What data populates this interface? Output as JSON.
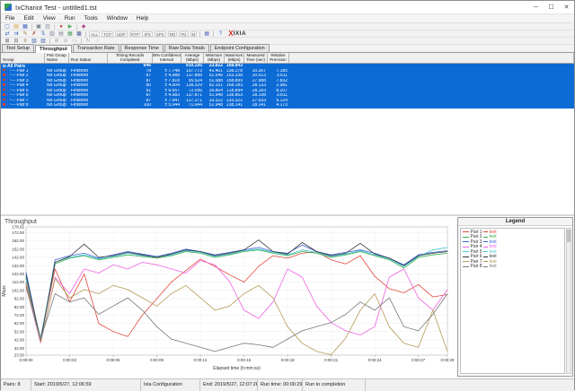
{
  "window": {
    "title": "IxChariot Test - untitled1.tst"
  },
  "titlebar_controls": {
    "minimize": "─",
    "maximize": "☐",
    "close": "✕"
  },
  "menu": {
    "items": [
      "File",
      "Edit",
      "View",
      "Run",
      "Tools",
      "Window",
      "Help"
    ]
  },
  "toolbar1": {
    "icons": [
      {
        "n": "new-test-icon",
        "g": "▢",
        "c": "#4f6fc8"
      },
      {
        "n": "open-test-icon",
        "g": "▤",
        "c": "#d9a23c"
      },
      {
        "n": "save-test-icon",
        "g": "▦",
        "c": "#3d5fc0"
      },
      {
        "sep": true
      },
      {
        "n": "print-icon",
        "g": "▣",
        "c": "#707880"
      },
      {
        "n": "copy-icon",
        "g": "▥",
        "c": "#8a94a0"
      },
      {
        "sep": true
      },
      {
        "n": "stop-test-icon",
        "g": "●",
        "c": "#cc3a30"
      },
      {
        "n": "run-test-icon",
        "g": "▶",
        "c": "#58a858"
      },
      {
        "sep": true
      },
      {
        "n": "properties-icon",
        "g": "◆",
        "c": "#b05090"
      }
    ]
  },
  "toolbar2": {
    "icons": [
      {
        "n": "add-pair-icon",
        "g": "⇄",
        "c": "#3f63c2"
      },
      {
        "n": "add-multicast-group-icon",
        "g": "⇉",
        "c": "#3f63c2"
      },
      {
        "n": "edit-pair-icon",
        "g": "✎",
        "c": "#9a7430"
      },
      {
        "n": "delete-pair-icon",
        "g": "✗",
        "c": "#c04038"
      },
      {
        "n": "swap-endpoints-icon",
        "g": "⇅",
        "c": "#4a7ac0"
      },
      {
        "n": "replicate-pair-icon",
        "g": "▥",
        "c": "#7a8494"
      },
      {
        "n": "pair-console-icon",
        "g": "▤",
        "c": "#7a8494"
      },
      {
        "n": "chart-view-icon",
        "g": "▦",
        "c": "#50a060"
      },
      {
        "n": "grid-view-icon",
        "g": "▩",
        "c": "#5060a0"
      },
      {
        "sep": true
      }
    ],
    "filters": [
      "ALL",
      "TCP",
      "UDP",
      "RTP",
      "IPX",
      "SPX",
      "RD",
      "PD",
      "M"
    ],
    "tail_icons": [
      {
        "sep": true
      },
      {
        "n": "table-icon",
        "g": "▦",
        "c": "#6a74c0"
      },
      {
        "sep": true
      },
      {
        "n": "help-icon",
        "g": "?",
        "c": "#2a6ac8"
      }
    ],
    "logo": {
      "x": "X",
      "text": "IXIA"
    }
  },
  "toolbar3": {
    "icons": [
      {
        "n": "expand-all-icon",
        "g": "⊞",
        "c": "#606878"
      },
      {
        "n": "collapse-all-icon",
        "g": "⊟",
        "c": "#606878"
      },
      {
        "n": "sort-icon",
        "g": "≡",
        "c": "#8a6a30"
      },
      {
        "n": "group-pairs-icon",
        "g": "▧",
        "c": "#4a6ab0"
      },
      {
        "n": "ungroup-pairs-icon",
        "g": "▨",
        "c": "#4a6ab0"
      },
      {
        "sep": true
      },
      {
        "n": "zoom-in-icon",
        "g": "⊕",
        "c": "#a8aeb8"
      },
      {
        "n": "zoom-out-icon",
        "g": "⊖",
        "c": "#a8aeb8"
      },
      {
        "n": "fit-view-icon",
        "g": "▭",
        "c": "#a8aeb8"
      },
      {
        "sep": true
      },
      {
        "n": "refresh-chart-icon",
        "g": "↻",
        "c": "#a8aeb8"
      },
      {
        "n": "chart-options-icon",
        "g": "○",
        "c": "#a8aeb8"
      }
    ]
  },
  "tabs": {
    "items": [
      "Test Setup",
      "Throughput",
      "Transaction Rate",
      "Response Time",
      "Raw Data Totals",
      "Endpoint Configuration"
    ],
    "active_index": 1
  },
  "table": {
    "columns": [
      {
        "l1": "Group",
        "l2": ""
      },
      {
        "l1": "Pair Group",
        "l2": "Name"
      },
      {
        "l1": "Run Status",
        "l2": ""
      },
      {
        "l1": "Timing Records",
        "l2": "Completed"
      },
      {
        "l1": "95% Confidence",
        "l2": "Interval"
      },
      {
        "l1": "Average",
        "l2": "(Mbps)"
      },
      {
        "l1": "Minimum",
        "l2": "(Mbps)"
      },
      {
        "l1": "Maximum",
        "l2": "(Mbps)"
      },
      {
        "l1": "Measured",
        "l2": "Time (sec)"
      },
      {
        "l1": "Relative",
        "l2": "Precision"
      }
    ],
    "summary_row": {
      "group": "All Pairs",
      "timing": "646",
      "avg": "910.195",
      "min": "23.822",
      "max": "168.843"
    },
    "rows": [
      {
        "group": "Pair 1",
        "name": "No Group",
        "status": "Finished",
        "timing": "78",
        "ci": "± 7.748",
        "avg": "107.773",
        "min": "41.401",
        "max": "138.278",
        "time": "20.307",
        "prec": "7.185"
      },
      {
        "group": "Pair 2",
        "name": "No Group",
        "status": "Finished",
        "timing": "87",
        "ci": "± 4.988",
        "avg": "137.888",
        "min": "51.546",
        "max": "153.338",
        "time": "20.013",
        "prec": "3.611"
      },
      {
        "group": "Pair 3",
        "name": "No Group",
        "status": "Finished",
        "timing": "87",
        "ci": "± 7.818",
        "avg": "95.524",
        "min": "51.588",
        "max": "158.899",
        "time": "27.988",
        "prec": "7.832"
      },
      {
        "group": "Pair 4",
        "name": "No Group",
        "status": "Finished",
        "timing": "80",
        "ci": "± 4.004",
        "avg": "138.329",
        "min": "82.151",
        "max": "168.183",
        "time": "28.133",
        "prec": "2.981"
      },
      {
        "group": "Pair 5",
        "name": "No Group",
        "status": "Finished",
        "timing": "91",
        "ci": "± 6.657",
        "avg": "72.096",
        "min": "39.804",
        "max": "118.894",
        "time": "28.183",
        "prec": "8.207"
      },
      {
        "group": "Pair 6",
        "name": "No Group",
        "status": "Finished",
        "timing": "87",
        "ci": "± 4.983",
        "avg": "137.871",
        "min": "51.948",
        "max": "138.863",
        "time": "28.198",
        "prec": "3.811"
      },
      {
        "group": "Pair 7",
        "name": "No Group",
        "status": "Finished",
        "timing": "87",
        "ci": "± 7.947",
        "avg": "127.271",
        "min": "33.322",
        "max": "133.322",
        "time": "27.933",
        "prec": "9.129"
      },
      {
        "group": "Pair 8",
        "name": "No Group",
        "status": "Finished",
        "timing": "100",
        "ci": "± 5.044",
        "avg": "71.044",
        "min": "51.948",
        "max": "138.141",
        "time": "28.141",
        "prec": "4.173"
      }
    ]
  },
  "chart_data": {
    "type": "line",
    "title": "Throughput",
    "xlabel": "Elapsed time (h:mm:ss)",
    "ylabel": "Mbps",
    "xlim": [
      0,
      29
    ],
    "ylim": [
      23.5,
      178.92
    ],
    "grid": true,
    "legend_position": "right-panel",
    "x": [
      0,
      1,
      2,
      3,
      4,
      5,
      6,
      7,
      8,
      9,
      10,
      11,
      12,
      13,
      14,
      15,
      16,
      17,
      18,
      19,
      20,
      21,
      22,
      23,
      24,
      25,
      26,
      27,
      28,
      29
    ],
    "xticks": [
      {
        "t": 0,
        "l": "0:00:00"
      },
      {
        "t": 3,
        "l": "0:00:03"
      },
      {
        "t": 6,
        "l": "0:00:06"
      },
      {
        "t": 9,
        "l": "0:00:09"
      },
      {
        "t": 12,
        "l": "0:00:12"
      },
      {
        "t": 15,
        "l": "0:00:15"
      },
      {
        "t": 18,
        "l": "0:00:18"
      },
      {
        "t": 21,
        "l": "0:00:21"
      },
      {
        "t": 24,
        "l": "0:00:24"
      },
      {
        "t": 27,
        "l": "0:00:27"
      },
      {
        "t": 29,
        "l": "0:00:29"
      }
    ],
    "yticks": [
      {
        "v": 178.92,
        "l": "178.92"
      },
      {
        "v": 172,
        "l": "172.00"
      },
      {
        "v": 162,
        "l": "162.00"
      },
      {
        "v": 152,
        "l": "152.00"
      },
      {
        "v": 142,
        "l": "142.00"
      },
      {
        "v": 132,
        "l": "132.00"
      },
      {
        "v": 122,
        "l": "122.00"
      },
      {
        "v": 112,
        "l": "112.00"
      },
      {
        "v": 102,
        "l": "102.00"
      },
      {
        "v": 92,
        "l": "92.00"
      },
      {
        "v": 82,
        "l": "82.00"
      },
      {
        "v": 72,
        "l": "72.00"
      },
      {
        "v": 62,
        "l": "62.00"
      },
      {
        "v": 52,
        "l": "52.00"
      },
      {
        "v": 42,
        "l": "42.00"
      },
      {
        "v": 32,
        "l": "32.00"
      },
      {
        "v": 23.5,
        "l": "23.50"
      }
    ],
    "series": [
      {
        "name": "Pair 1",
        "color": "#e0483c",
        "values": [
          112,
          45,
          128,
          88,
          122,
          62,
          52,
          46,
          72,
          92,
          112,
          126,
          140,
          131,
          121,
          112,
          131,
          144,
          141,
          147,
          149,
          139,
          134,
          144,
          119,
          104,
          99,
          109,
          94,
          97
        ]
      },
      {
        "name": "Pair 2",
        "color": "#36b04a",
        "values": [
          118,
          42,
          134,
          141,
          144,
          139,
          142,
          145,
          143,
          141,
          144,
          149,
          147,
          142,
          145,
          149,
          151,
          147,
          144,
          149,
          147,
          142,
          145,
          149,
          144,
          139,
          129,
          142,
          145,
          147
        ]
      },
      {
        "name": "Pair 3",
        "color": "#3d64d8",
        "values": [
          124,
          40,
          139,
          144,
          147,
          141,
          145,
          149,
          146,
          143,
          147,
          152,
          149,
          145,
          148,
          151,
          154,
          149,
          147,
          157,
          149,
          145,
          148,
          151,
          147,
          141,
          133,
          145,
          148,
          150
        ]
      },
      {
        "name": "Pair 4",
        "color": "#ee62e2",
        "values": [
          108,
          38,
          118,
          98,
          128,
          123,
          133,
          128,
          136,
          133,
          128,
          123,
          138,
          133,
          113,
          78,
          68,
          88,
          128,
          118,
          83,
          63,
          53,
          48,
          58,
          118,
          128,
          93,
          78,
          103
        ]
      },
      {
        "name": "Pair 5",
        "color": "#46c8dc",
        "values": [
          116,
          44,
          136,
          142,
          145,
          140,
          143,
          147,
          144,
          142,
          145,
          150,
          148,
          143,
          146,
          150,
          152,
          148,
          145,
          151,
          148,
          143,
          146,
          150,
          145,
          140,
          131,
          143,
          151,
          154
        ]
      },
      {
        "name": "Pair 6",
        "color": "#34343c",
        "values": [
          121,
          41,
          136,
          143,
          158,
          142,
          144,
          148,
          145,
          142,
          146,
          151,
          149,
          144,
          147,
          151,
          163,
          149,
          146,
          160,
          149,
          144,
          147,
          159,
          146,
          141,
          132,
          144,
          147,
          149
        ]
      },
      {
        "name": "Pair 7",
        "color": "#b49a56",
        "values": [
          110,
          39,
          116,
          93,
          103,
          98,
          108,
          103,
          93,
          83,
          98,
          108,
          93,
          78,
          83,
          98,
          108,
          93,
          58,
          38,
          28,
          24,
          44,
          78,
          98,
          58,
          38,
          33,
          78,
          28
        ]
      },
      {
        "name": "Pair 8",
        "color": "#787878",
        "values": [
          106,
          43,
          98,
          88,
          93,
          73,
          83,
          93,
          78,
          58,
          43,
          38,
          33,
          28,
          33,
          38,
          36,
          33,
          43,
          53,
          58,
          63,
          73,
          88,
          78,
          93,
          58,
          53,
          73,
          98
        ]
      }
    ]
  },
  "legend": {
    "title": "Legend",
    "items": [
      {
        "pair": "Pair 1",
        "target": "test",
        "color": "#e0483c"
      },
      {
        "pair": "Pair 2",
        "target": "test",
        "color": "#36b04a"
      },
      {
        "pair": "Pair 3",
        "target": "test",
        "color": "#3d64d8"
      },
      {
        "pair": "Pair 4",
        "target": "test",
        "color": "#ee62e2"
      },
      {
        "pair": "Pair 5",
        "target": "test",
        "color": "#46c8dc"
      },
      {
        "pair": "Pair 6",
        "target": "test",
        "color": "#34343c"
      },
      {
        "pair": "Pair 7",
        "target": "test",
        "color": "#b49a56"
      },
      {
        "pair": "Pair 8",
        "target": "test",
        "color": "#787878"
      }
    ]
  },
  "statusbar": {
    "cells": [
      "Pairs: 8",
      "Start: 2019/5/27, 12:06:59",
      "Ixia Configuration",
      "End: 2019/5/27, 12:07:28",
      "Run time: 00:00:29",
      "Run to completion"
    ]
  },
  "colors": {
    "selection": "#0d6bd6",
    "selection_text": "#ffffff",
    "logo_red": "#d42a20"
  }
}
